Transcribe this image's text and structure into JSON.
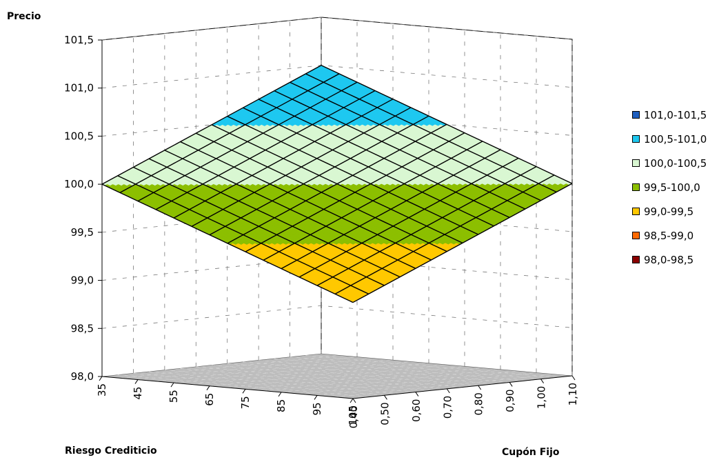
{
  "chart_data": {
    "type": "surface",
    "zlabel": "Precio",
    "xlabel": "Riesgo Crediticio",
    "ylabel": "Cupón Fijo",
    "z_ticks": [
      "98,0",
      "98,5",
      "99,0",
      "99,5",
      "100,0",
      "100,5",
      "101,0",
      "101,5"
    ],
    "zlim": [
      98.0,
      101.5
    ],
    "x_ticks": [
      "35",
      "45",
      "55",
      "65",
      "75",
      "85",
      "95",
      "105"
    ],
    "y_ticks": [
      "0,40",
      "0,50",
      "0,60",
      "0,70",
      "0,80",
      "0,90",
      "1,00",
      "1,10"
    ],
    "legend": [
      {
        "label": "101,0-101,5",
        "color": "#1f5fbf"
      },
      {
        "label": "100,5-101,0",
        "color": "#1ec8f0"
      },
      {
        "label": "100,0-100,5",
        "color": "#d9f7d2"
      },
      {
        "label": "99,5-100,0",
        "color": "#8cbf00"
      },
      {
        "label": "99,0-99,5",
        "color": "#ffc800"
      },
      {
        "label": "98,5-99,0",
        "color": "#ff6a00"
      },
      {
        "label": "98,0-98,5",
        "color": "#8b0000"
      }
    ],
    "surface_corners": {
      "note_order": "riesgo_min-cupon_min, riesgo_min-cupon_max, riesgo_max-cupon_min, riesgo_max-cupon_max",
      "values": [
        100.0,
        99.0,
        101.0,
        100.0
      ]
    },
    "grid": true,
    "legend_position": "right"
  }
}
